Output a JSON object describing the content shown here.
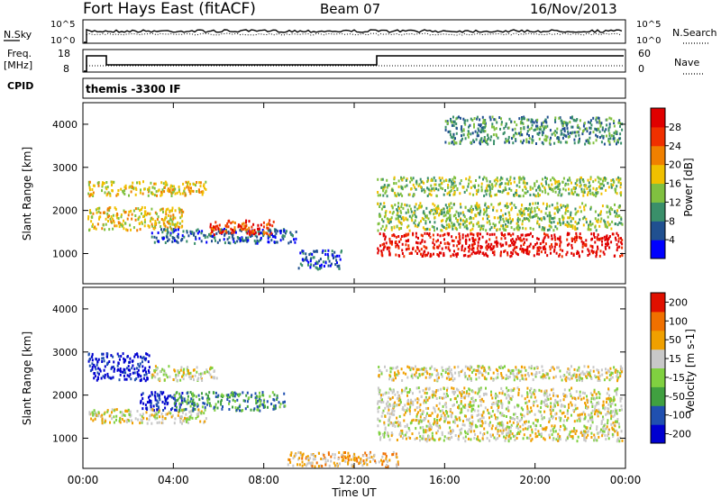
{
  "header": {
    "title": "Fort Hays East (fitACF)",
    "beam": "Beam 07",
    "date": "16/Nov/2013"
  },
  "top_panel": {
    "left_label": "N.Sky",
    "right_label": "N.Search",
    "left_ticks": [
      "10^5",
      "10^0"
    ],
    "right_ticks": [
      "10^5",
      "10^0"
    ]
  },
  "freq_panel": {
    "left_label_line1": "Freq.",
    "left_label_line2": "[MHz]",
    "right_label": "Nave",
    "left_ticks": [
      "18",
      "8"
    ],
    "right_ticks": [
      "60",
      "0"
    ]
  },
  "cpid_panel": {
    "label": "CPID",
    "text": "themis -3300 IF"
  },
  "chart_data": [
    {
      "type": "heatmap",
      "name": "power",
      "ylabel": "Slant Range [km]",
      "yticks": [
        "4000",
        "3000",
        "2000",
        "1000"
      ],
      "ylim": [
        300,
        4500
      ],
      "xlim": [
        0,
        24
      ],
      "colorbar_label": "Power [dB]",
      "colorbar_ticks": [
        "28",
        "24",
        "20",
        "16",
        "12",
        "8",
        "4"
      ],
      "colors": [
        "#0000ff",
        "#205090",
        "#3a8f6a",
        "#80c040",
        "#f0c000",
        "#f08000",
        "#f03000",
        "#e00000"
      ],
      "regions": [
        {
          "t0": 0.2,
          "t1": 5.5,
          "r0": 2300,
          "r1": 2700,
          "level": 4
        },
        {
          "t0": 0.2,
          "t1": 4.5,
          "r0": 1500,
          "r1": 2100,
          "level": 4
        },
        {
          "t0": 3.0,
          "t1": 9.5,
          "r0": 1200,
          "r1": 1600,
          "level": 1
        },
        {
          "t0": 5.5,
          "t1": 8.5,
          "r0": 1400,
          "r1": 1800,
          "level": 6
        },
        {
          "t0": 9.5,
          "t1": 11.5,
          "r0": 600,
          "r1": 1100,
          "level": 1
        },
        {
          "t0": 13.0,
          "t1": 23.9,
          "r0": 900,
          "r1": 1500,
          "level": 7
        },
        {
          "t0": 13.0,
          "t1": 23.9,
          "r0": 1500,
          "r1": 2200,
          "level": 3
        },
        {
          "t0": 13.0,
          "t1": 23.9,
          "r0": 2300,
          "r1": 2800,
          "level": 3
        },
        {
          "t0": 16.0,
          "t1": 23.9,
          "r0": 3500,
          "r1": 4200,
          "level": 2
        }
      ]
    },
    {
      "type": "heatmap",
      "name": "velocity",
      "ylabel": "Slant Range [km]",
      "yticks": [
        "4000",
        "3000",
        "2000",
        "1000"
      ],
      "ylim": [
        300,
        4500
      ],
      "xlim": [
        0,
        24
      ],
      "colorbar_label": "Velocity [m s-1]",
      "colorbar_ticks": [
        "200",
        "100",
        "50",
        "15",
        "-15",
        "-50",
        "-100",
        "-200"
      ],
      "colors": [
        "#0000d0",
        "#2050b0",
        "#40a040",
        "#80d040",
        "#c8c8c8",
        "#f0a000",
        "#f07000",
        "#e01000"
      ],
      "regions": [
        {
          "t0": 0.2,
          "t1": 3.0,
          "r0": 2300,
          "r1": 3000,
          "level": 0
        },
        {
          "t0": 2.5,
          "t1": 4.5,
          "r0": 1600,
          "r1": 2100,
          "level": 0
        },
        {
          "t0": 0.2,
          "t1": 5.5,
          "r0": 1300,
          "r1": 1700,
          "level": 4
        },
        {
          "t0": 3.0,
          "t1": 6.0,
          "r0": 2300,
          "r1": 2700,
          "level": 4
        },
        {
          "t0": 4.0,
          "t1": 9.0,
          "r0": 1600,
          "r1": 2100,
          "level": 2
        },
        {
          "t0": 13.0,
          "t1": 23.9,
          "r0": 900,
          "r1": 2200,
          "level": 4
        },
        {
          "t0": 13.0,
          "t1": 23.9,
          "r0": 2300,
          "r1": 2700,
          "level": 4
        },
        {
          "t0": 9.0,
          "t1": 14.0,
          "r0": 300,
          "r1": 700,
          "level": 5
        }
      ]
    }
  ],
  "x_axis": {
    "ticks": [
      "00:00",
      "04:00",
      "08:00",
      "12:00",
      "16:00",
      "20:00",
      "00:00"
    ],
    "label": "Time UT"
  }
}
